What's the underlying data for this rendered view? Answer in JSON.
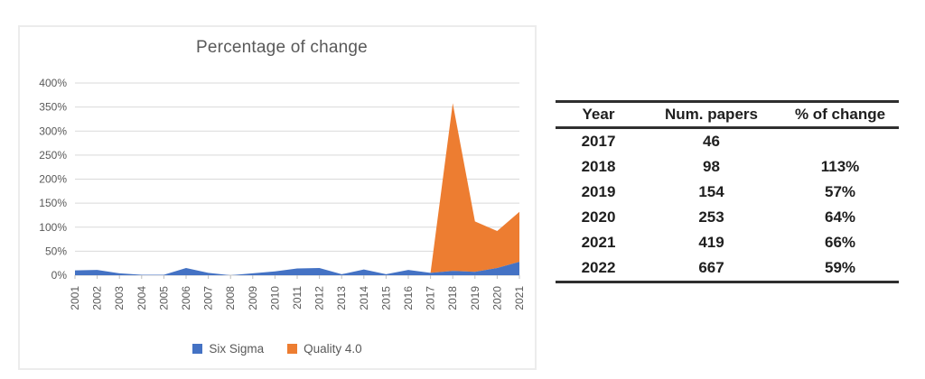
{
  "chart_data": {
    "type": "area",
    "stacked": true,
    "title": "Percentage of change",
    "categories": [
      "2001",
      "2002",
      "2003",
      "2004",
      "2005",
      "2006",
      "2007",
      "2008",
      "2009",
      "2010",
      "2011",
      "2012",
      "2013",
      "2014",
      "2015",
      "2016",
      "2017",
      "2018",
      "2019",
      "2020",
      "2021"
    ],
    "series": [
      {
        "name": "Six Sigma",
        "color": "#4472C4",
        "values": [
          10,
          11,
          4,
          1,
          1,
          15,
          5,
          0,
          4,
          8,
          14,
          15,
          2,
          12,
          2,
          11,
          5,
          9,
          7,
          15,
          28
        ]
      },
      {
        "name": "Quality 4.0",
        "color": "#ED7D31",
        "values": [
          0,
          0,
          0,
          0,
          0,
          0,
          0,
          0,
          0,
          0,
          0,
          0,
          0,
          0,
          0,
          0,
          0,
          349,
          105,
          77,
          104
        ]
      }
    ],
    "ylim": [
      0,
      400
    ],
    "ytick_labels": [
      "0%",
      "50%",
      "100%",
      "150%",
      "200%",
      "250%",
      "300%",
      "350%",
      "400%"
    ],
    "grid": true,
    "legend_position": "bottom",
    "xlabel": "",
    "ylabel": ""
  },
  "table": {
    "columns": [
      "Year",
      "Num. papers",
      "% of change"
    ],
    "rows": [
      [
        "2017",
        "46",
        ""
      ],
      [
        "2018",
        "98",
        "113%"
      ],
      [
        "2019",
        "154",
        "57%"
      ],
      [
        "2020",
        "253",
        "64%"
      ],
      [
        "2021",
        "419",
        "66%"
      ],
      [
        "2022",
        "667",
        "59%"
      ]
    ]
  },
  "colors": {
    "six_sigma": "#4472C4",
    "quality_40": "#ED7D31",
    "gridline": "#d9d9d9",
    "axis_text": "#595959",
    "table_line": "#2f2f2f"
  }
}
